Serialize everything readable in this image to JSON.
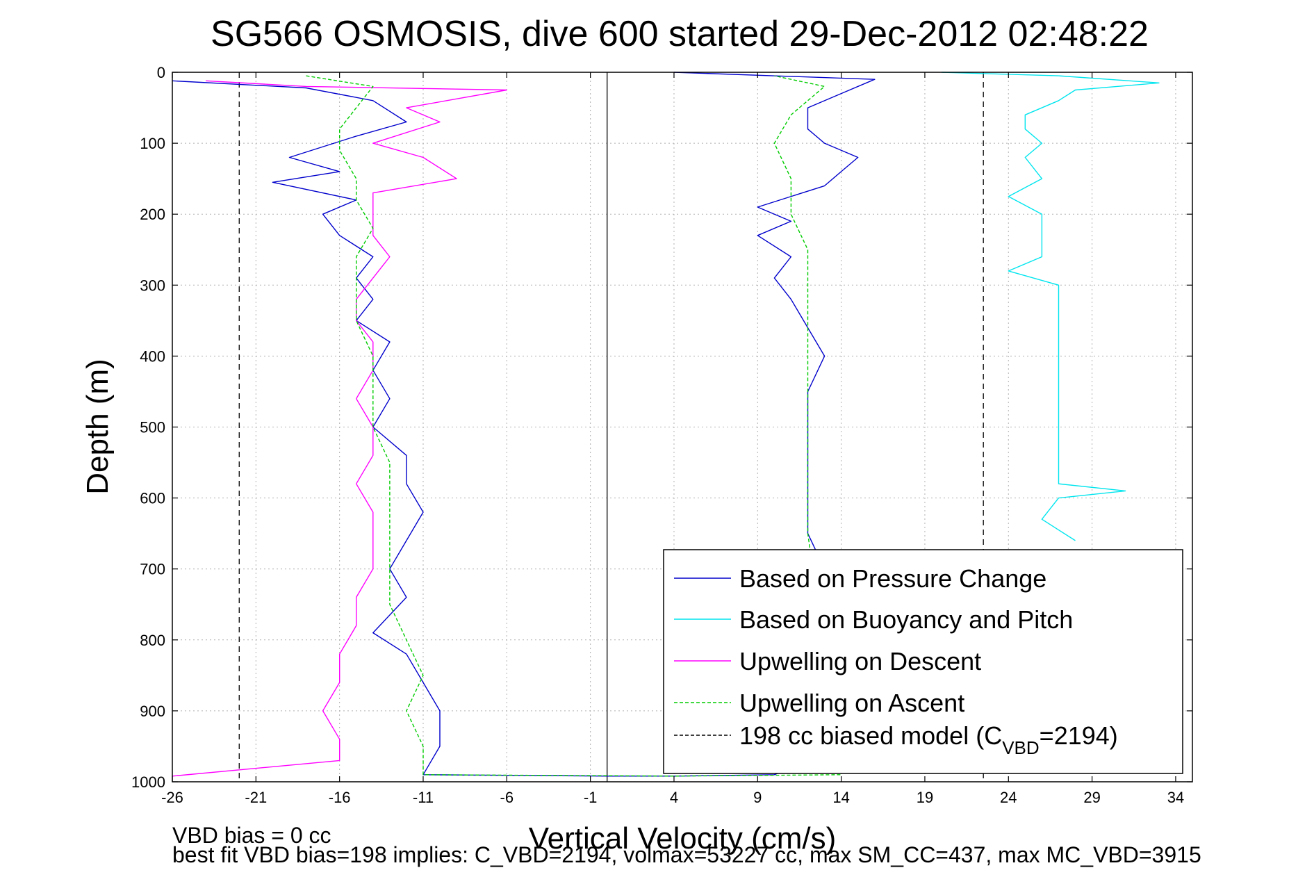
{
  "chart_data": {
    "type": "line",
    "title": "SG566 OSMOSIS, dive 600 started 29-Dec-2012 02:48:22",
    "xlabel": "Vertical Velocity (cm/s)",
    "ylabel": "Depth (m)",
    "xlim": [
      -26,
      35
    ],
    "ylim": [
      1000,
      0
    ],
    "y_reversed": true,
    "grid": true,
    "x_ticks": [
      -26,
      -21,
      -16,
      -11,
      -6,
      -1,
      4,
      9,
      14,
      19,
      24,
      29,
      34
    ],
    "y_ticks": [
      0,
      100,
      200,
      300,
      400,
      500,
      600,
      700,
      800,
      900,
      1000
    ],
    "legend_position": "bottom-right",
    "reference_lines": [
      {
        "x": -22,
        "style": "dashed",
        "color": "#000000"
      },
      {
        "x": 0,
        "style": "solid",
        "color": "#000000"
      },
      {
        "x": 22.5,
        "style": "dashed",
        "color": "#000000"
      }
    ],
    "series": [
      {
        "name": "Based on Pressure Change",
        "color": "#0000cc",
        "style": "solid",
        "points": [
          [
            -26,
            12
          ],
          [
            -18,
            22
          ],
          [
            -14,
            40
          ],
          [
            -12,
            70
          ],
          [
            -15,
            90
          ],
          [
            -19,
            120
          ],
          [
            -16,
            140
          ],
          [
            -20,
            155
          ],
          [
            -15,
            180
          ],
          [
            -17,
            200
          ],
          [
            -16,
            230
          ],
          [
            -14,
            260
          ],
          [
            -15,
            290
          ],
          [
            -14,
            320
          ],
          [
            -15,
            350
          ],
          [
            -13,
            380
          ],
          [
            -14,
            420
          ],
          [
            -13,
            460
          ],
          [
            -14,
            500
          ],
          [
            -12,
            540
          ],
          [
            -12,
            580
          ],
          [
            -11,
            620
          ],
          [
            -12,
            660
          ],
          [
            -13,
            700
          ],
          [
            -12,
            740
          ],
          [
            -14,
            790
          ],
          [
            -12,
            820
          ],
          [
            -11,
            860
          ],
          [
            -10,
            900
          ],
          [
            -10,
            950
          ],
          [
            -11,
            990
          ],
          [
            0,
            992
          ],
          [
            4,
            992
          ],
          [
            10,
            990
          ],
          [
            13,
            960
          ],
          [
            13,
            900
          ],
          [
            13,
            800
          ],
          [
            13,
            700
          ],
          [
            12,
            650
          ],
          [
            12,
            600
          ],
          [
            12,
            550
          ],
          [
            12,
            500
          ],
          [
            12,
            450
          ],
          [
            13,
            400
          ],
          [
            12,
            360
          ],
          [
            11,
            320
          ],
          [
            10,
            290
          ],
          [
            11,
            260
          ],
          [
            9,
            230
          ],
          [
            11,
            210
          ],
          [
            9,
            190
          ],
          [
            13,
            160
          ],
          [
            14,
            140
          ],
          [
            15,
            120
          ],
          [
            13,
            100
          ],
          [
            12,
            80
          ],
          [
            12,
            50
          ],
          [
            14,
            30
          ],
          [
            16,
            10
          ],
          [
            4,
            0
          ]
        ]
      },
      {
        "name": "Based on Buoyancy and Pitch",
        "color": "#00e5ee",
        "style": "solid",
        "points": [
          [
            20,
            0
          ],
          [
            27,
            5
          ],
          [
            33,
            15
          ],
          [
            28,
            25
          ],
          [
            27,
            40
          ],
          [
            25,
            60
          ],
          [
            25,
            80
          ],
          [
            26,
            100
          ],
          [
            25,
            120
          ],
          [
            26,
            150
          ],
          [
            24,
            175
          ],
          [
            26,
            200
          ],
          [
            26,
            230
          ],
          [
            26,
            260
          ],
          [
            24,
            280
          ],
          [
            27,
            300
          ],
          [
            27,
            350
          ],
          [
            27,
            400
          ],
          [
            27,
            450
          ],
          [
            27,
            500
          ],
          [
            27,
            550
          ],
          [
            27,
            580
          ],
          [
            31,
            590
          ],
          [
            27,
            600
          ],
          [
            26,
            630
          ],
          [
            28,
            660
          ]
        ]
      },
      {
        "name": "Upwelling on Descent",
        "color": "#ff00ff",
        "style": "solid",
        "points": [
          [
            -24,
            12
          ],
          [
            -18,
            20
          ],
          [
            -6,
            25
          ],
          [
            -12,
            50
          ],
          [
            -10,
            70
          ],
          [
            -14,
            100
          ],
          [
            -11,
            120
          ],
          [
            -9,
            150
          ],
          [
            -14,
            170
          ],
          [
            -14,
            200
          ],
          [
            -14,
            230
          ],
          [
            -13,
            260
          ],
          [
            -14,
            290
          ],
          [
            -15,
            320
          ],
          [
            -15,
            350
          ],
          [
            -14,
            380
          ],
          [
            -14,
            420
          ],
          [
            -15,
            460
          ],
          [
            -14,
            500
          ],
          [
            -14,
            540
          ],
          [
            -15,
            580
          ],
          [
            -14,
            620
          ],
          [
            -14,
            660
          ],
          [
            -14,
            700
          ],
          [
            -15,
            740
          ],
          [
            -15,
            780
          ],
          [
            -16,
            820
          ],
          [
            -16,
            860
          ],
          [
            -17,
            900
          ],
          [
            -16,
            940
          ],
          [
            -16,
            970
          ],
          [
            -26,
            992
          ]
        ]
      },
      {
        "name": "Upwelling on Ascent",
        "color": "#00cc00",
        "style": "dashed",
        "points": [
          [
            -18,
            5
          ],
          [
            -14,
            20
          ],
          [
            -15,
            50
          ],
          [
            -16,
            80
          ],
          [
            -16,
            110
          ],
          [
            -15,
            150
          ],
          [
            -15,
            180
          ],
          [
            -14,
            220
          ],
          [
            -15,
            260
          ],
          [
            -15,
            300
          ],
          [
            -15,
            350
          ],
          [
            -14,
            400
          ],
          [
            -14,
            450
          ],
          [
            -14,
            500
          ],
          [
            -13,
            550
          ],
          [
            -13,
            600
          ],
          [
            -13,
            650
          ],
          [
            -13,
            700
          ],
          [
            -13,
            750
          ],
          [
            -12,
            800
          ],
          [
            -11,
            850
          ],
          [
            -12,
            900
          ],
          [
            -11,
            950
          ],
          [
            -11,
            990
          ],
          [
            4,
            992
          ],
          [
            14,
            990
          ],
          [
            12,
            650
          ],
          [
            12,
            600
          ],
          [
            12,
            550
          ],
          [
            12,
            500
          ],
          [
            12,
            450
          ],
          [
            12,
            400
          ],
          [
            12,
            350
          ],
          [
            12,
            300
          ],
          [
            12,
            250
          ],
          [
            11,
            200
          ],
          [
            11,
            150
          ],
          [
            10,
            100
          ],
          [
            11,
            60
          ],
          [
            12,
            40
          ],
          [
            13,
            20
          ],
          [
            10,
            5
          ]
        ]
      },
      {
        "name": "198 cc biased model (C",
        "name_sub": "VBD",
        "name_tail": "=2194)",
        "color": "#000000",
        "style": "dashed",
        "points": []
      }
    ]
  },
  "footer": {
    "line1": "VBD bias = 0 cc",
    "line2": "best fit VBD bias=198 implies: C_VBD=2194, volmax=53227 cc, max SM_CC=437, max MC_VBD=3915"
  }
}
